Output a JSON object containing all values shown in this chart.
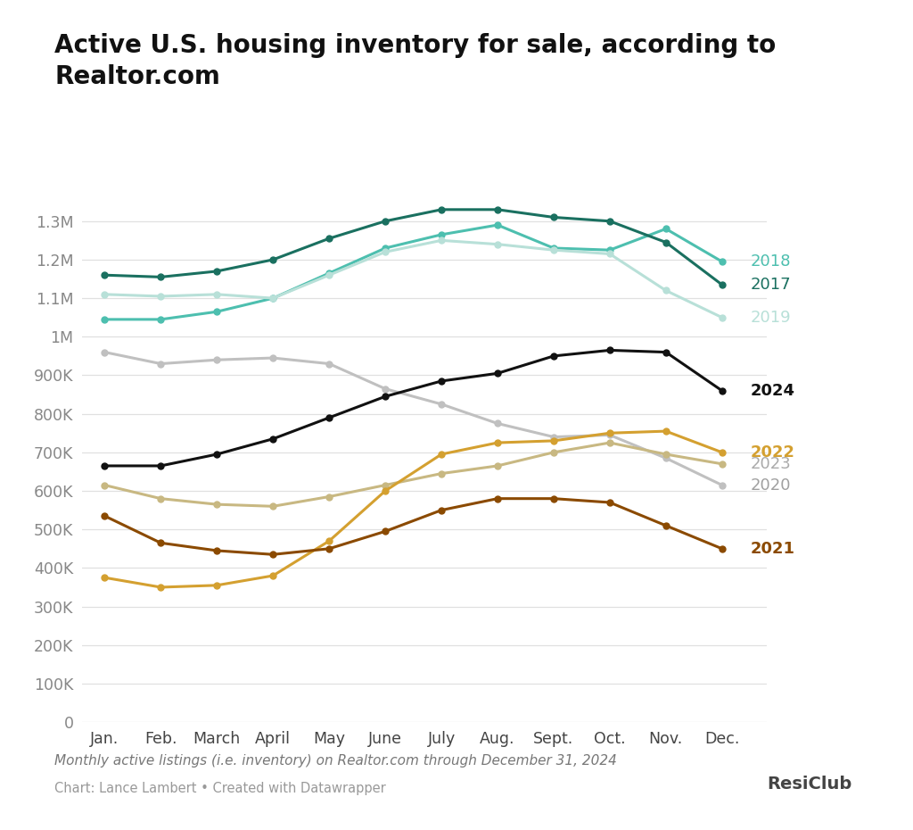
{
  "title": "Active U.S. housing inventory for sale, according to\nRealtor.com",
  "subtitle": "Monthly active listings (i.e. inventory) on Realtor.com through December 31, 2024",
  "credit": "Chart: Lance Lambert • Created with Datawrapper",
  "months": [
    "Jan.",
    "Feb.",
    "March",
    "April",
    "May",
    "June",
    "July",
    "Aug.",
    "Sept.",
    "Oct.",
    "Nov.",
    "Dec."
  ],
  "series": {
    "2018": {
      "color": "#4dbfaf",
      "values": [
        1045000,
        1045000,
        1065000,
        1100000,
        1165000,
        1230000,
        1265000,
        1290000,
        1230000,
        1225000,
        1280000,
        1195000
      ],
      "label_color": "#4dbfaf",
      "bold": false
    },
    "2017": {
      "color": "#1a7060",
      "values": [
        1160000,
        1155000,
        1170000,
        1200000,
        1255000,
        1300000,
        1330000,
        1330000,
        1310000,
        1300000,
        1245000,
        1135000
      ],
      "label_color": "#1a7060",
      "bold": false
    },
    "2019": {
      "color": "#b8e0d8",
      "values": [
        1110000,
        1105000,
        1110000,
        1100000,
        1160000,
        1220000,
        1250000,
        1240000,
        1225000,
        1215000,
        1120000,
        1050000
      ],
      "label_color": "#b8e0d8",
      "bold": false
    },
    "2020": {
      "color": "#c0c0c0",
      "values": [
        960000,
        930000,
        940000,
        945000,
        930000,
        865000,
        825000,
        775000,
        740000,
        745000,
        685000,
        615000
      ],
      "label_color": "#a0a0a0",
      "bold": false
    },
    "2024": {
      "color": "#111111",
      "values": [
        665000,
        665000,
        695000,
        735000,
        790000,
        845000,
        885000,
        905000,
        950000,
        965000,
        960000,
        860000
      ],
      "label_color": "#111111",
      "bold": true
    },
    "2023": {
      "color": "#c8b882",
      "values": [
        615000,
        580000,
        565000,
        560000,
        585000,
        615000,
        645000,
        665000,
        700000,
        725000,
        695000,
        670000
      ],
      "label_color": "#aaaaaa",
      "bold": false
    },
    "2022": {
      "color": "#d4a030",
      "values": [
        375000,
        350000,
        355000,
        380000,
        470000,
        600000,
        695000,
        725000,
        730000,
        750000,
        755000,
        700000
      ],
      "label_color": "#d4a030",
      "bold": true
    },
    "2021": {
      "color": "#8b4a00",
      "values": [
        535000,
        465000,
        445000,
        435000,
        450000,
        495000,
        550000,
        580000,
        580000,
        570000,
        510000,
        450000
      ],
      "label_color": "#8b4a00",
      "bold": true
    }
  },
  "label_order": [
    [
      "2018",
      1195000
    ],
    [
      "2017",
      1135000
    ],
    [
      "2019",
      1050000
    ],
    [
      "2024",
      860000
    ],
    [
      "2023",
      670000
    ],
    [
      "2022",
      700000
    ],
    [
      "2020",
      615000
    ],
    [
      "2021",
      450000
    ]
  ],
  "ylim": [
    0,
    1400000
  ],
  "yticks": [
    0,
    100000,
    200000,
    300000,
    400000,
    500000,
    600000,
    700000,
    800000,
    900000,
    1000000,
    1100000,
    1200000,
    1300000
  ],
  "background_color": "#ffffff"
}
